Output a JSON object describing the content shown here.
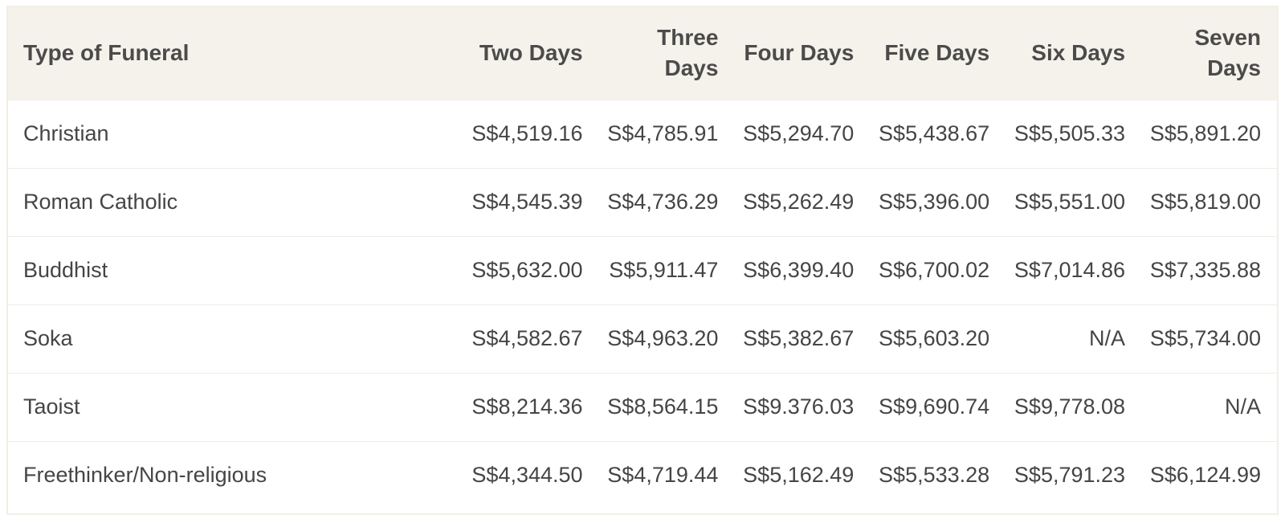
{
  "table": {
    "headers": [
      "Type of Funeral",
      "Two Days",
      "Three Days",
      "Four Days",
      "Five Days",
      "Six Days",
      "Seven Days"
    ],
    "rows": [
      [
        "Christian",
        "S$4,519.16",
        "S$4,785.91",
        "S$5,294.70",
        "S$5,438.67",
        "S$5,505.33",
        "S$5,891.20"
      ],
      [
        "Roman Catholic",
        "S$4,545.39",
        "S$4,736.29",
        "S$5,262.49",
        "S$5,396.00",
        "S$5,551.00",
        "S$5,819.00"
      ],
      [
        "Buddhist",
        "S$5,632.00",
        "S$5,911.47",
        "S$6,399.40",
        "S$6,700.02",
        "S$7,014.86",
        "S$7,335.88"
      ],
      [
        "Soka",
        "S$4,582.67",
        "S$4,963.20",
        "S$5,382.67",
        "S$5,603.20",
        "N/A",
        "S$5,734.00"
      ],
      [
        "Taoist",
        "S$8,214.36",
        "S$8,564.15",
        "S$9.376.03",
        "S$9,690.74",
        "S$9,778.08",
        "N/A"
      ],
      [
        "Freethinker/Non-religious",
        "S$4,344.50",
        "S$4,719.44",
        "S$5,162.49",
        "S$5,533.28",
        "S$5,791.23",
        "S$6,124.99"
      ]
    ]
  }
}
